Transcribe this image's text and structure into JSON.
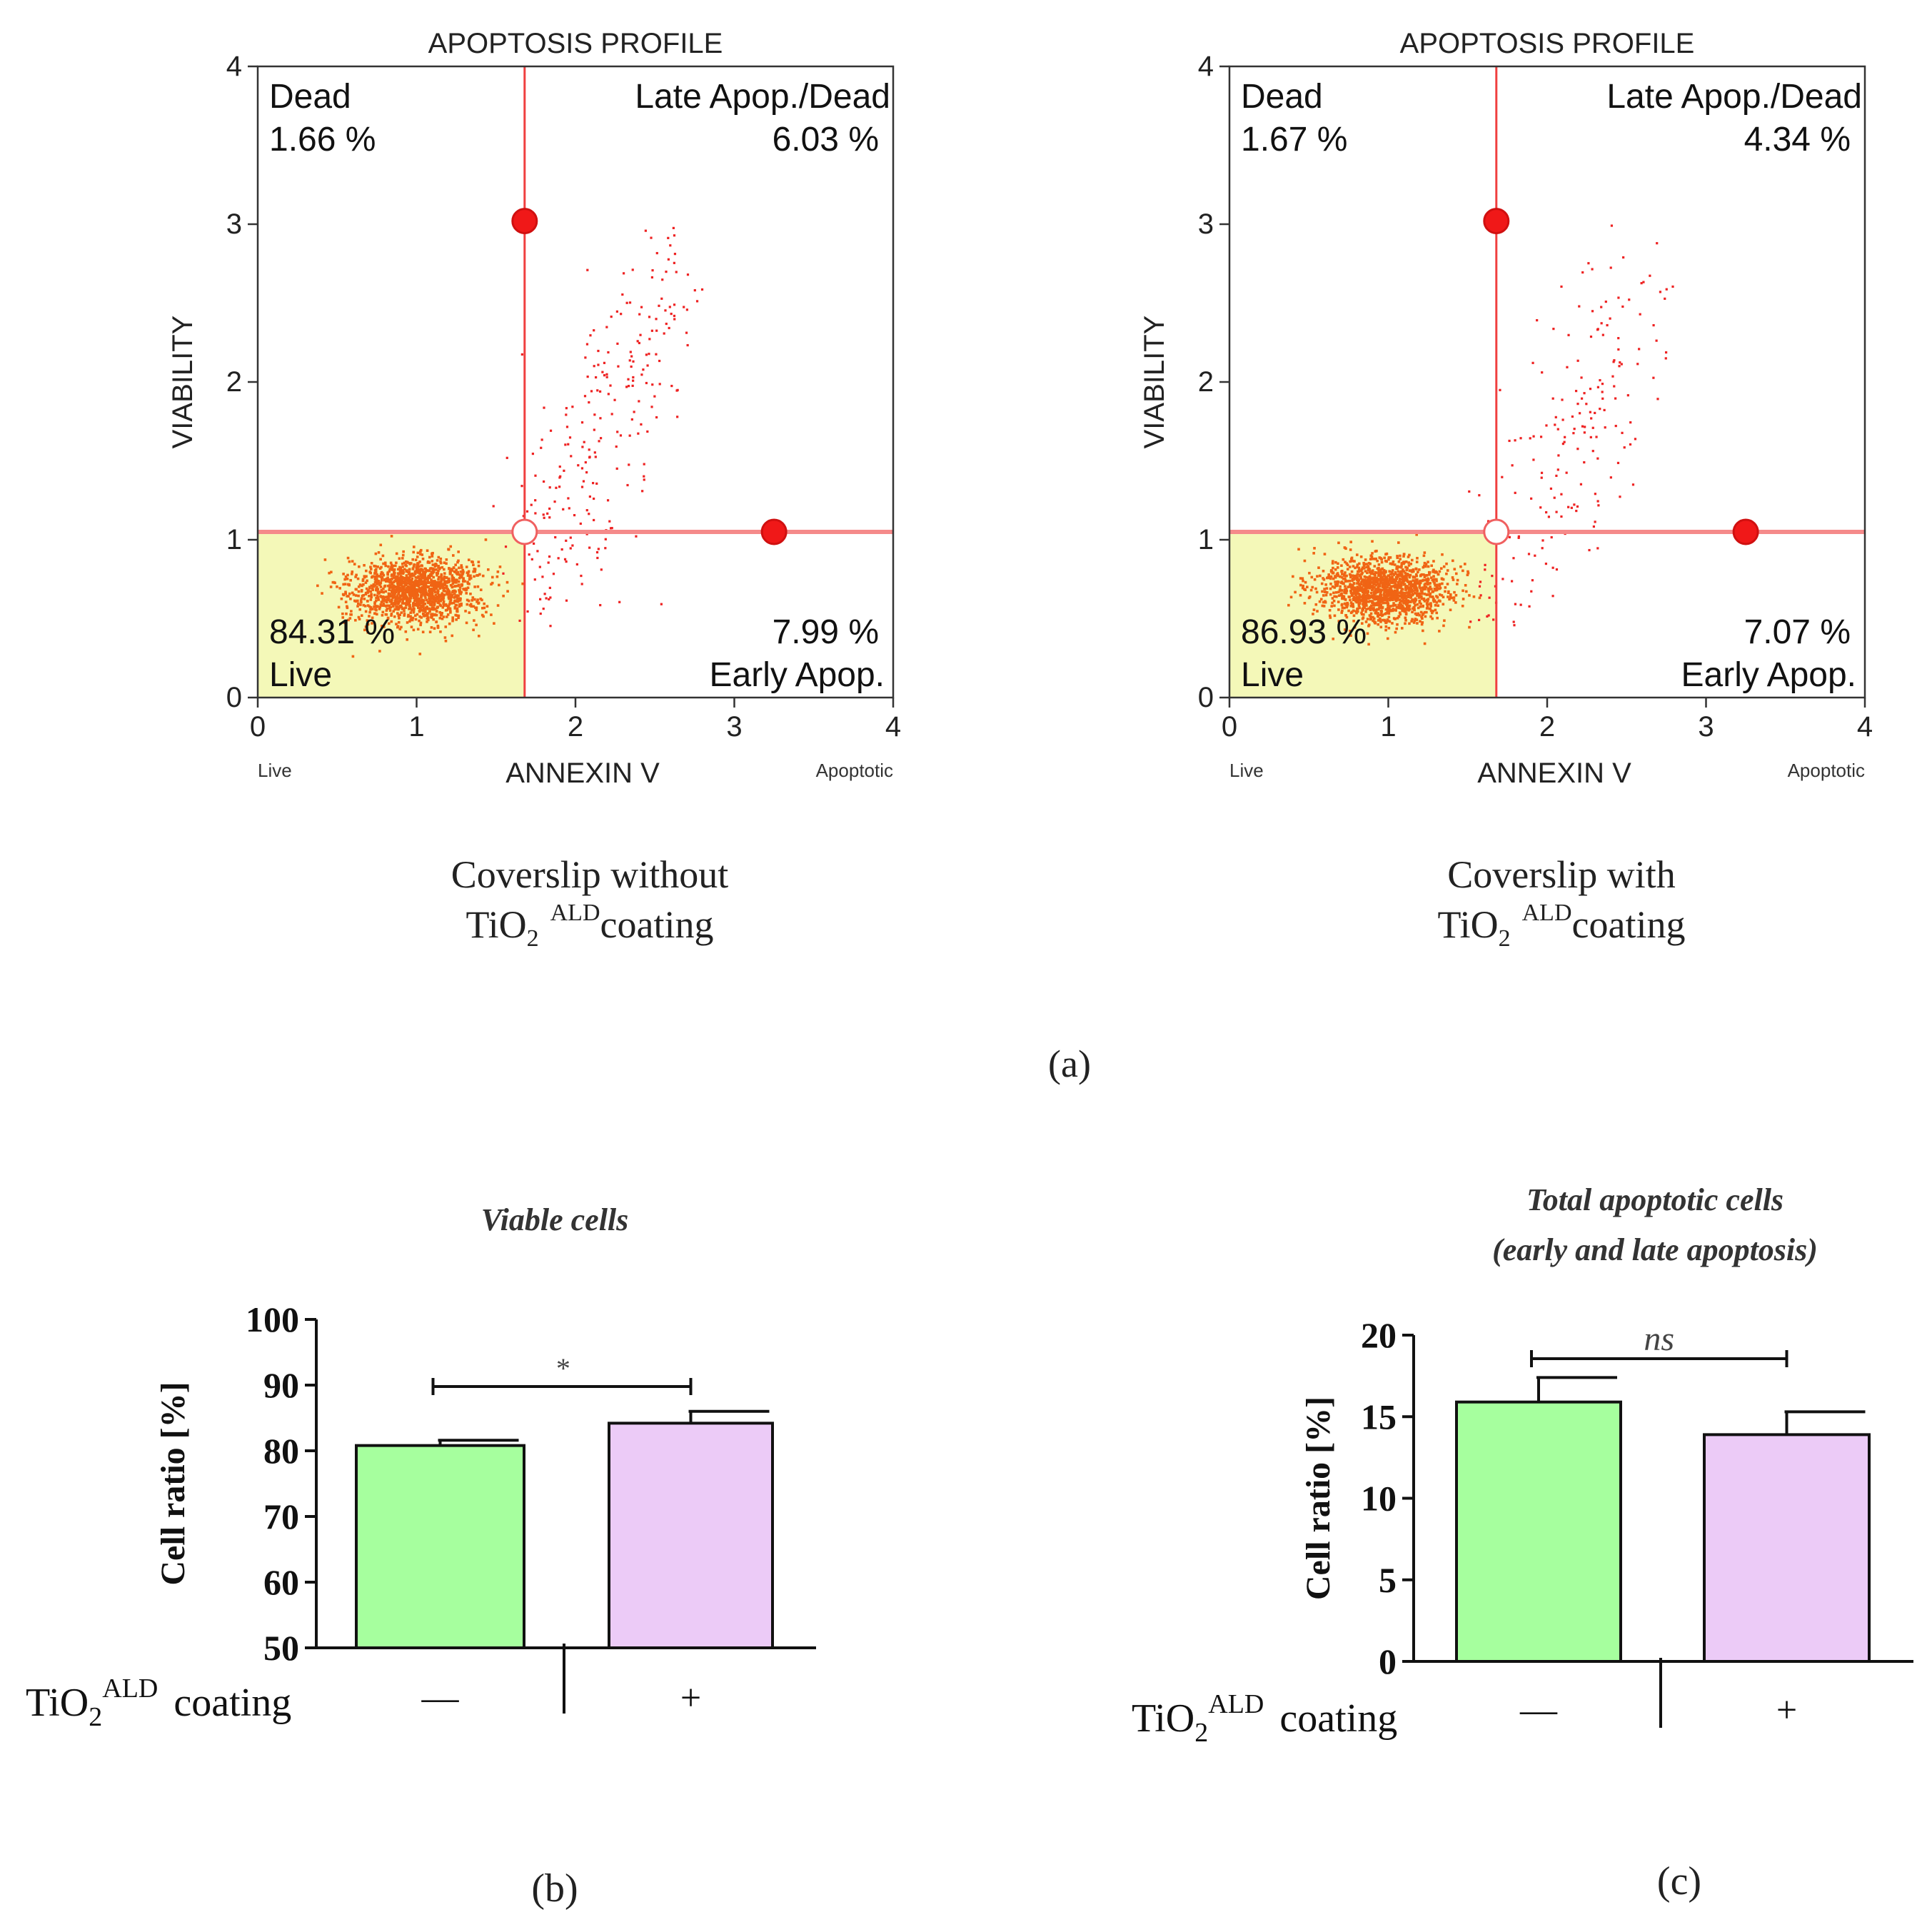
{
  "labels": {
    "caption_a": "(a)",
    "caption_b": "(b)",
    "caption_c": "(c)"
  },
  "chart_data": [
    {
      "id": "flow-left",
      "type": "scatter",
      "title": "APOPTOSIS PROFILE",
      "xlabel": "ANNEXIN V",
      "ylabel": "VIABILITY",
      "xlim": [
        0,
        4
      ],
      "ylim": [
        0,
        4
      ],
      "x_ticks": [
        "0",
        "1",
        "2",
        "3",
        "4"
      ],
      "y_ticks": [
        "0",
        "1",
        "2",
        "3",
        "4"
      ],
      "x_axis_left_note": "Live",
      "x_axis_right_note": "Apoptotic",
      "gates": {
        "x": 1.68,
        "y": 1.05
      },
      "gate_handles": [
        [
          1.68,
          3.02
        ],
        [
          3.25,
          1.05
        ],
        [
          1.68,
          1.05
        ]
      ],
      "quadrants": {
        "top_left": {
          "label": "Dead",
          "value": "1.66 %"
        },
        "top_right": {
          "label": "Late Apop./Dead",
          "value": "6.03 %"
        },
        "bottom_left": {
          "label": "Live",
          "value": "84.31 %"
        },
        "bottom_right": {
          "label": "Early Apop.",
          "value": "7.99 %"
        }
      },
      "caption_line1": "Coverslip without",
      "caption_line2_prefix": "TiO",
      "caption_line2_sub": "2",
      "caption_line2_sup": "ALD",
      "caption_line2_suffix": "coating",
      "population": {
        "live_center": [
          1.0,
          0.68
        ],
        "live_count": 1500,
        "apoptotic_count": 260
      }
    },
    {
      "id": "flow-right",
      "type": "scatter",
      "title": "APOPTOSIS PROFILE",
      "xlabel": "ANNEXIN V",
      "ylabel": "VIABILITY",
      "xlim": [
        0,
        4
      ],
      "ylim": [
        0,
        4
      ],
      "x_ticks": [
        "0",
        "1",
        "2",
        "3",
        "4"
      ],
      "y_ticks": [
        "0",
        "1",
        "2",
        "3",
        "4"
      ],
      "x_axis_left_note": "Live",
      "x_axis_right_note": "Apoptotic",
      "gates": {
        "x": 1.68,
        "y": 1.05
      },
      "gate_handles": [
        [
          1.68,
          3.02
        ],
        [
          3.25,
          1.05
        ],
        [
          1.68,
          1.05
        ]
      ],
      "quadrants": {
        "top_left": {
          "label": "Dead",
          "value": "1.67 %"
        },
        "top_right": {
          "label": "Late Apop./Dead",
          "value": "4.34 %"
        },
        "bottom_left": {
          "label": "Live",
          "value": "86.93 %"
        },
        "bottom_right": {
          "label": "Early Apop.",
          "value": "7.07 %"
        }
      },
      "caption_line1": "Coverslip with",
      "caption_line2_prefix": "TiO",
      "caption_line2_sub": "2",
      "caption_line2_sup": "ALD",
      "caption_line2_suffix": "coating",
      "population": {
        "live_center": [
          0.98,
          0.68
        ],
        "live_count": 1500,
        "apoptotic_count": 200
      }
    },
    {
      "id": "bar-viable",
      "type": "bar",
      "title": "Viable cells",
      "ylabel": "Cell ratio [%]",
      "ylim": [
        50,
        100
      ],
      "y_ticks": [
        50,
        60,
        70,
        80,
        90,
        100
      ],
      "categories": [
        "—",
        "+"
      ],
      "values": [
        80.8,
        84.2
      ],
      "errors": [
        0.8,
        1.8
      ],
      "colors": [
        "#a6ff9e",
        "#eccbf7"
      ],
      "significance": "*",
      "group_label_prefix": "TiO",
      "group_label_sub": "2",
      "group_label_sup": "ALD",
      "group_label_suffix": "coating"
    },
    {
      "id": "bar-apoptotic",
      "type": "bar",
      "title": "Total apoptotic cells",
      "subtitle": "(early and late apoptosis)",
      "ylabel": "Cell ratio [%]",
      "ylim": [
        0,
        20
      ],
      "y_ticks": [
        0,
        5,
        10,
        15,
        20
      ],
      "categories": [
        "—",
        "+"
      ],
      "values": [
        15.9,
        13.9
      ],
      "errors": [
        1.5,
        1.4
      ],
      "colors": [
        "#a6ff9e",
        "#eccbf7"
      ],
      "significance": "ns",
      "group_label_prefix": "TiO",
      "group_label_sub": "2",
      "group_label_sup": "ALD",
      "group_label_suffix": "coating"
    }
  ]
}
